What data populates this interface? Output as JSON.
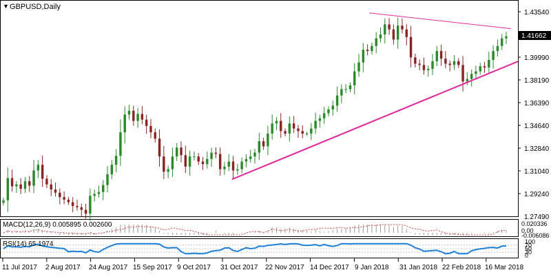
{
  "window": {
    "title": "GBPUSD,Daily"
  },
  "price_axis": {
    "labels": [
      "1.43540",
      "1.41662",
      "1.39990",
      "1.38190",
      "1.36390",
      "1.34640",
      "1.32840",
      "1.31040",
      "1.29240",
      "1.27490"
    ],
    "current_price": "1.41662"
  },
  "time_axis": {
    "labels": [
      "11 Jul 2017",
      "2 Aug 2017",
      "24 Aug 2017",
      "15 Sep 2017",
      "9 Oct 2017",
      "31 Oct 2017",
      "22 Nov 2017",
      "14 Dec 2017",
      "9 Jan 2018",
      "31 Jan 2018",
      "22 Feb 2018",
      "16 Mar 2018"
    ]
  },
  "macd": {
    "label": "MACD(12,26,9) 0.005895 0.002600",
    "axis_labels": [
      "0.020336",
      "0.00",
      "-0.006086"
    ]
  },
  "rsi": {
    "label": "RSI(14) 65.1974",
    "axis_labels": [
      "100",
      "70",
      "50",
      "30",
      "0"
    ]
  },
  "colors": {
    "bull_candle": "#2a8a2a",
    "bear_candle": "#8a2424",
    "trendline": "#e0289a",
    "rsi_line": "#1e7fd8",
    "macd_signal": "#d04040",
    "macd_hist": "#999999",
    "grid": "#c8c8c8"
  },
  "chart_data": {
    "type": "candlestick",
    "symbol": "GBPUSD",
    "timeframe": "Daily",
    "ylim": [
      1.2749,
      1.4354
    ],
    "closes": [
      1.2875,
      1.305,
      1.2985,
      1.3,
      1.2965,
      1.3025,
      1.299,
      1.311,
      1.3155,
      1.3045,
      1.3,
      1.296,
      1.2935,
      1.29,
      1.288,
      1.286,
      1.283,
      1.282,
      1.28,
      1.277,
      1.291,
      1.2925,
      1.294,
      1.2995,
      1.308,
      1.3155,
      1.3225,
      1.341,
      1.355,
      1.358,
      1.35,
      1.3555,
      1.351,
      1.346,
      1.341,
      1.336,
      1.322,
      1.31,
      1.312,
      1.322,
      1.329,
      1.323,
      1.314,
      1.322,
      1.322,
      1.318,
      1.316,
      1.32,
      1.325,
      1.324,
      1.312,
      1.314,
      1.318,
      1.311,
      1.312,
      1.318,
      1.32,
      1.322,
      1.325,
      1.334,
      1.33,
      1.34,
      1.348,
      1.35,
      1.342,
      1.34,
      1.348,
      1.344,
      1.342,
      1.34,
      1.34,
      1.344,
      1.35,
      1.352,
      1.356,
      1.359,
      1.362,
      1.37,
      1.375,
      1.375,
      1.378,
      1.389,
      1.396,
      1.406,
      1.405,
      1.409,
      1.415,
      1.418,
      1.426,
      1.422,
      1.414,
      1.425,
      1.422,
      1.416,
      1.4,
      1.395,
      1.394,
      1.39,
      1.391,
      1.397,
      1.405,
      1.399,
      1.395,
      1.394,
      1.397,
      1.394,
      1.381,
      1.383,
      1.387,
      1.389,
      1.393,
      1.392,
      1.398,
      1.405,
      1.409,
      1.415,
      1.4166
    ],
    "trendlines": [
      {
        "name": "resistance",
        "from": [
          "9 Jan 2018",
          1.435
        ],
        "to": [
          "16 Mar 2018",
          1.423
        ]
      },
      {
        "name": "support",
        "from": [
          "31 Oct 2017",
          1.304
        ],
        "to": [
          "16 Mar 2018",
          1.393
        ]
      }
    ],
    "macd_current": 0.005895,
    "macd_signal": 0.0026,
    "rsi_current": 65.1974
  }
}
